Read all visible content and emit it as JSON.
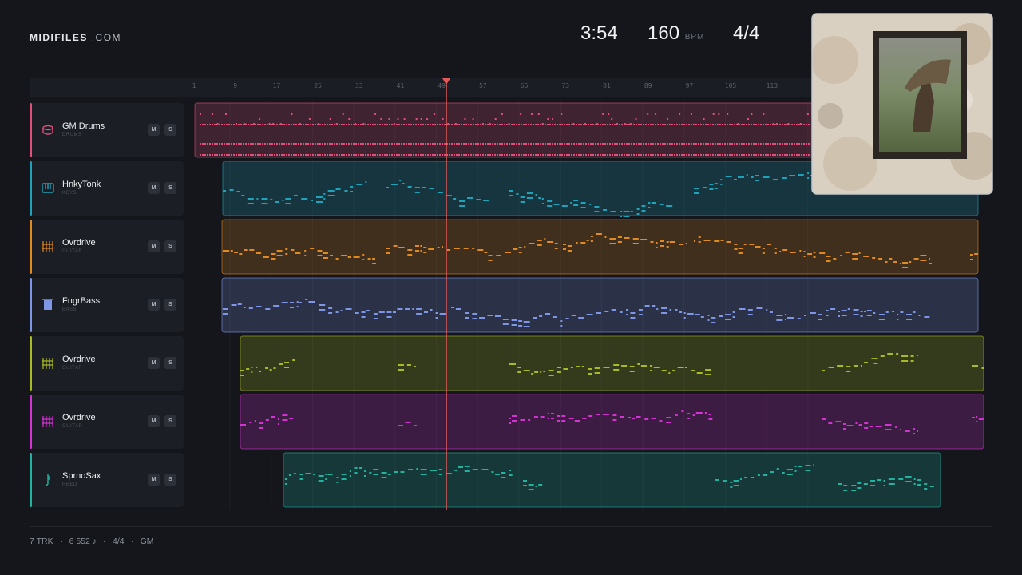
{
  "header": {
    "brand": "MIDIFILES",
    "brand_suffix": ".COM",
    "duration": "3:54",
    "tempo": "160",
    "tempo_unit": "BPM",
    "meter": "4/4"
  },
  "ruler": [
    "1",
    "9",
    "17",
    "25",
    "33",
    "41",
    "49",
    "57",
    "65",
    "73",
    "81",
    "89",
    "97",
    "105",
    "113"
  ],
  "controls": {
    "mute": "M",
    "solo": "S"
  },
  "tracks": [
    {
      "name": "GM Drums",
      "type": "DRUMS",
      "color": "#e0507a"
    },
    {
      "name": "HnkyTonk",
      "type": "KEYS",
      "color": "#1fa3ba"
    },
    {
      "name": "Ovrdrive",
      "type": "GUITAR",
      "color": "#e08a22"
    },
    {
      "name": "FngrBass",
      "type": "BASS",
      "color": "#7f95e6"
    },
    {
      "name": "Ovrdrive",
      "type": "GUITAR",
      "color": "#a9bb22"
    },
    {
      "name": "Ovrdrive",
      "type": "GUITAR",
      "color": "#d233d2"
    },
    {
      "name": "SprnoSax",
      "type": "REED",
      "color": "#22b3a0"
    }
  ],
  "footer": [
    "7 TRK",
    "6 552 ♪",
    "4/4",
    "GM"
  ]
}
